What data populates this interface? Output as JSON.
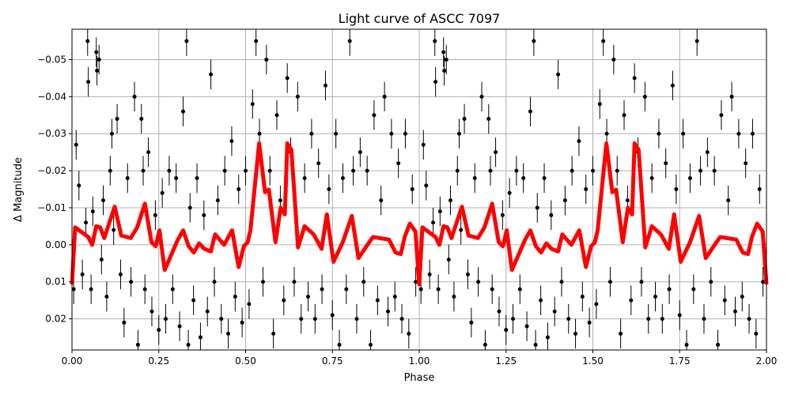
{
  "chart_data": {
    "type": "scatter",
    "title": "Light curve of ASCC 7097",
    "xlabel": "Phase",
    "ylabel": "Δ Magnitude",
    "xlim": [
      0,
      2
    ],
    "ylim": [
      0.0284,
      -0.0582
    ],
    "y_inverted": true,
    "grid": true,
    "x_ticks": [
      "0.00",
      "0.25",
      "0.50",
      "0.75",
      "1.00",
      "1.25",
      "1.50",
      "1.75",
      "2.00"
    ],
    "y_ticks": [
      "−0.05",
      "−0.04",
      "−0.03",
      "−0.02",
      "−0.01",
      "0.00",
      "0.01",
      "0.02"
    ],
    "y_tick_values": [
      -0.05,
      -0.04,
      -0.03,
      -0.02,
      -0.01,
      0.0,
      0.01,
      0.02
    ],
    "colors": {
      "points": "#000000",
      "model": "#ff0000",
      "grid": "#b0b0b0"
    },
    "series": [
      {
        "type": "errorbar-scatter",
        "period_repeat": true,
        "typical_error": 0.004,
        "points": [
          [
            0.005,
            0.012
          ],
          [
            0.012,
            -0.027
          ],
          [
            0.02,
            -0.016
          ],
          [
            0.03,
            0.008
          ],
          [
            0.04,
            -0.006
          ],
          [
            0.045,
            -0.055
          ],
          [
            0.047,
            -0.044
          ],
          [
            0.055,
            0.012
          ],
          [
            0.06,
            -0.009
          ],
          [
            0.07,
            -0.052
          ],
          [
            0.072,
            -0.047
          ],
          [
            0.078,
            -0.05
          ],
          [
            0.085,
            0.004
          ],
          [
            0.09,
            -0.012
          ],
          [
            0.1,
            0.014
          ],
          [
            0.11,
            -0.02
          ],
          [
            0.115,
            -0.03
          ],
          [
            0.12,
            -0.004
          ],
          [
            0.13,
            -0.034
          ],
          [
            0.14,
            0.008
          ],
          [
            0.15,
            0.021
          ],
          [
            0.16,
            -0.018
          ],
          [
            0.17,
            0.01
          ],
          [
            0.18,
            -0.04
          ],
          [
            0.19,
            0.027
          ],
          [
            0.2,
            -0.034
          ],
          [
            0.205,
            -0.02
          ],
          [
            0.21,
            0.012
          ],
          [
            0.22,
            -0.025
          ],
          [
            0.23,
            0.018
          ],
          [
            0.24,
            -0.008
          ],
          [
            0.25,
            0.023
          ],
          [
            0.26,
            -0.014
          ],
          [
            0.27,
            0.02
          ],
          [
            0.28,
            -0.02
          ],
          [
            0.29,
            0.012
          ],
          [
            0.3,
            -0.018
          ],
          [
            0.31,
            0.022
          ],
          [
            0.32,
            -0.036
          ],
          [
            0.33,
            -0.055
          ],
          [
            0.335,
            0.027
          ],
          [
            0.34,
            -0.01
          ],
          [
            0.35,
            0.015
          ],
          [
            0.36,
            -0.018
          ],
          [
            0.37,
            0.025
          ],
          [
            0.38,
            -0.008
          ],
          [
            0.39,
            0.018
          ],
          [
            0.4,
            -0.046
          ],
          [
            0.41,
            0.01
          ],
          [
            0.42,
            -0.012
          ],
          [
            0.43,
            0.02
          ],
          [
            0.44,
            -0.02
          ],
          [
            0.45,
            0.024
          ],
          [
            0.46,
            -0.028
          ],
          [
            0.47,
            0.014
          ],
          [
            0.48,
            -0.015
          ],
          [
            0.49,
            0.021
          ],
          [
            0.5,
            -0.02
          ],
          [
            0.51,
            0.016
          ],
          [
            0.52,
            -0.038
          ],
          [
            0.53,
            -0.055
          ],
          [
            0.54,
            -0.03
          ],
          [
            0.55,
            0.01
          ],
          [
            0.56,
            -0.05
          ],
          [
            0.57,
            -0.02
          ],
          [
            0.58,
            0.024
          ],
          [
            0.59,
            -0.035
          ],
          [
            0.6,
            -0.012
          ],
          [
            0.61,
            0.015
          ],
          [
            0.62,
            -0.045
          ],
          [
            0.63,
            -0.025
          ],
          [
            0.64,
            0.01
          ],
          [
            0.65,
            -0.04
          ],
          [
            0.66,
            0.02
          ],
          [
            0.67,
            -0.018
          ],
          [
            0.68,
            0.014
          ],
          [
            0.69,
            -0.03
          ],
          [
            0.7,
            0.02
          ],
          [
            0.71,
            -0.022
          ],
          [
            0.72,
            0.012
          ],
          [
            0.73,
            -0.043
          ],
          [
            0.74,
            -0.015
          ],
          [
            0.75,
            0.019
          ],
          [
            0.76,
            -0.03
          ],
          [
            0.77,
            0.027
          ],
          [
            0.78,
            -0.018
          ],
          [
            0.79,
            0.012
          ],
          [
            0.8,
            -0.055
          ],
          [
            0.81,
            -0.02
          ],
          [
            0.82,
            0.02
          ],
          [
            0.83,
            -0.025
          ],
          [
            0.84,
            0.01
          ],
          [
            0.85,
            -0.02
          ],
          [
            0.86,
            0.027
          ],
          [
            0.87,
            -0.035
          ],
          [
            0.88,
            0.015
          ],
          [
            0.89,
            -0.012
          ],
          [
            0.9,
            -0.04
          ],
          [
            0.91,
            0.018
          ],
          [
            0.92,
            -0.03
          ],
          [
            0.93,
            0.014
          ],
          [
            0.94,
            -0.022
          ],
          [
            0.95,
            0.02
          ],
          [
            0.96,
            -0.03
          ],
          [
            0.97,
            0.024
          ],
          [
            0.98,
            -0.015
          ],
          [
            0.99,
            0.01
          ]
        ]
      },
      {
        "type": "line",
        "period_repeat": true,
        "points": [
          [
            0.0,
            0.0107
          ],
          [
            0.009,
            -0.0047
          ],
          [
            0.047,
            -0.0021
          ],
          [
            0.058,
            0.0
          ],
          [
            0.07,
            -0.005
          ],
          [
            0.081,
            -0.0047
          ],
          [
            0.093,
            -0.0018
          ],
          [
            0.123,
            -0.0103
          ],
          [
            0.142,
            -0.0025
          ],
          [
            0.169,
            -0.0018
          ],
          [
            0.188,
            -0.0047
          ],
          [
            0.21,
            -0.0111
          ],
          [
            0.229,
            -0.0007
          ],
          [
            0.241,
            0.0004
          ],
          [
            0.252,
            -0.0039
          ],
          [
            0.267,
            0.0068
          ],
          [
            0.305,
            -0.0014
          ],
          [
            0.32,
            -0.0039
          ],
          [
            0.336,
            0.0004
          ],
          [
            0.351,
            0.0021
          ],
          [
            0.366,
            -0.0004
          ],
          [
            0.381,
            0.0011
          ],
          [
            0.4,
            0.0018
          ],
          [
            0.412,
            -0.0028
          ],
          [
            0.438,
            0.0
          ],
          [
            0.461,
            -0.0039
          ],
          [
            0.48,
            0.006
          ],
          [
            0.495,
            0.0004
          ],
          [
            0.506,
            -0.0007
          ],
          [
            0.514,
            -0.0039
          ],
          [
            0.539,
            -0.0274
          ],
          [
            0.556,
            -0.0142
          ],
          [
            0.567,
            -0.0149
          ],
          [
            0.586,
            -0.0007
          ],
          [
            0.601,
            -0.01
          ],
          [
            0.613,
            -0.0082
          ],
          [
            0.62,
            -0.0274
          ],
          [
            0.632,
            -0.0256
          ],
          [
            0.651,
            0.0007
          ],
          [
            0.67,
            -0.005
          ],
          [
            0.696,
            -0.0028
          ],
          [
            0.719,
            0.0011
          ],
          [
            0.734,
            -0.0082
          ],
          [
            0.753,
            0.0046
          ],
          [
            0.78,
            -0.0007
          ],
          [
            0.806,
            -0.0078
          ],
          [
            0.825,
            0.0036
          ],
          [
            0.856,
            -0.0007
          ],
          [
            0.867,
            -0.0021
          ],
          [
            0.913,
            -0.0014
          ],
          [
            0.932,
            0.0021
          ],
          [
            0.947,
            0.0025
          ],
          [
            0.958,
            -0.0021
          ],
          [
            0.973,
            -0.0057
          ],
          [
            0.989,
            -0.0036
          ],
          [
            1.0,
            0.0107
          ]
        ]
      }
    ]
  }
}
